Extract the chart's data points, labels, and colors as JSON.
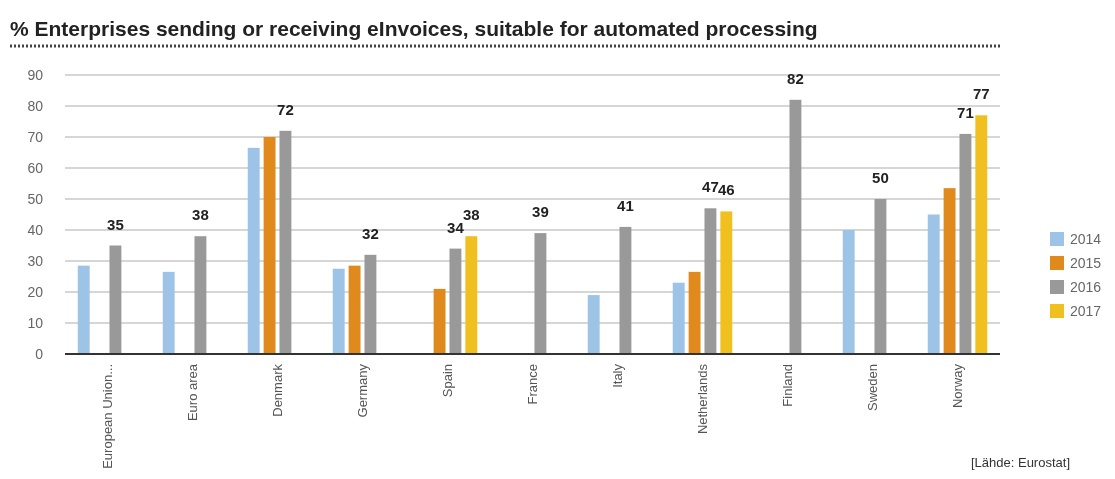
{
  "chart_data": {
    "type": "bar",
    "title": "% Enterprises sending or receiving eInvoices, suitable for automated processing",
    "categories": [
      "European Union...",
      "Euro area",
      "Denmark",
      "Germany",
      "Spain",
      "France",
      "Italy",
      "Netherlands",
      "Finland",
      "Sweden",
      "Norway"
    ],
    "series": [
      {
        "name": "2014",
        "color": "#9dc3e6",
        "values": [
          28.5,
          26.5,
          66.5,
          27.5,
          null,
          null,
          19,
          23,
          null,
          40,
          45
        ]
      },
      {
        "name": "2015",
        "color": "#e08a1e",
        "values": [
          null,
          null,
          70,
          28.5,
          21,
          null,
          null,
          26.5,
          null,
          null,
          53.5
        ]
      },
      {
        "name": "2016",
        "color": "#999999",
        "values": [
          35,
          38,
          72,
          32,
          34,
          39,
          41,
          47,
          82,
          50,
          71
        ],
        "value_labels": [
          "35",
          "38",
          "72",
          "32",
          "34",
          "39",
          "41",
          "47",
          "82",
          "50",
          "71"
        ]
      },
      {
        "name": "2017",
        "color": "#f0c020",
        "values": [
          null,
          null,
          null,
          null,
          38,
          null,
          null,
          46,
          null,
          null,
          77
        ],
        "value_labels": [
          null,
          null,
          null,
          null,
          "38",
          null,
          null,
          "46",
          null,
          null,
          "77"
        ]
      }
    ],
    "ylim": [
      0,
      90
    ],
    "yticks": [
      0,
      10,
      20,
      30,
      40,
      50,
      60,
      70,
      80,
      90
    ],
    "grid": "y",
    "legend": "right",
    "annotations": [
      "[Lähde: Eurostat]"
    ]
  }
}
